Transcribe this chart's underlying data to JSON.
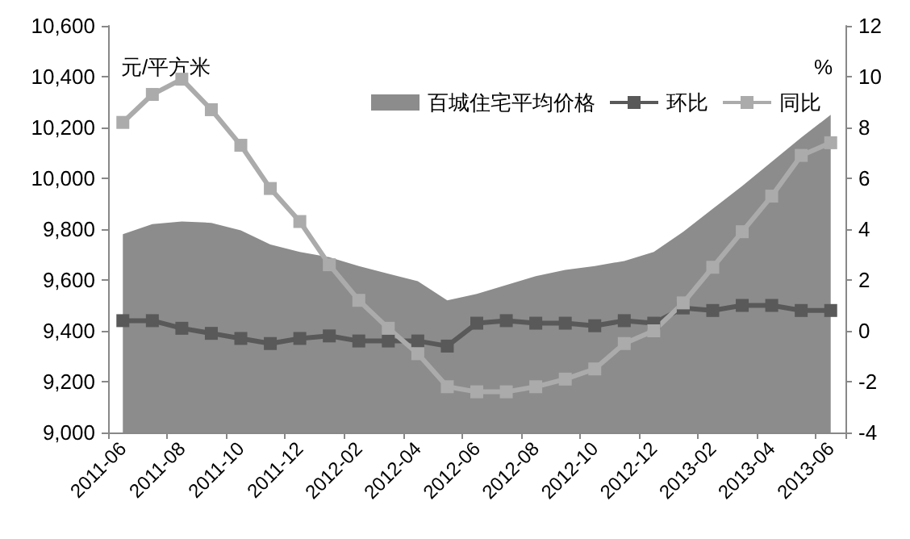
{
  "chart_data": {
    "type": "area",
    "ylabel": "元/平方米",
    "y2label": "%",
    "categories": [
      "2011-06",
      null,
      "2011-08",
      null,
      "2011-10",
      null,
      "2011-12",
      null,
      "2012-02",
      null,
      "2012-04",
      null,
      "2012-06",
      null,
      "2012-08",
      null,
      "2012-10",
      null,
      "2012-12",
      null,
      "2013-02",
      null,
      "2013-04",
      null,
      "2013-06"
    ],
    "series": [
      {
        "name": "百城住宅平均价格",
        "color": "#8c8c8c",
        "values": [
          9780,
          9820,
          9830,
          9825,
          9795,
          9740,
          9710,
          9690,
          9655,
          9625,
          9595,
          9520,
          9545,
          9580,
          9615,
          9640,
          9655,
          9675,
          9710,
          9790,
          9880,
          9970,
          10065,
          10160,
          10250
        ]
      },
      {
        "name": "环比",
        "type": "line",
        "axis": "y2",
        "color": "#595959",
        "marker": "square",
        "values": [
          0.4,
          0.4,
          0.1,
          -0.1,
          -0.3,
          -0.5,
          -0.3,
          -0.2,
          -0.4,
          -0.4,
          -0.4,
          -0.6,
          0.3,
          0.4,
          0.3,
          0.3,
          0.2,
          0.4,
          0.3,
          0.9,
          0.8,
          1.0,
          1.0,
          0.8,
          0.8
        ]
      },
      {
        "name": "同比",
        "type": "line",
        "axis": "y2",
        "color": "#ababab",
        "marker": "square",
        "values": [
          8.2,
          9.3,
          9.9,
          8.7,
          7.3,
          5.6,
          4.3,
          2.6,
          1.2,
          0.1,
          -0.9,
          -2.2,
          -2.4,
          -2.4,
          -2.2,
          -1.9,
          -1.5,
          -0.5,
          0.0,
          1.1,
          2.5,
          3.9,
          5.3,
          6.9,
          7.4
        ]
      }
    ],
    "ylim": [
      9000,
      10600
    ],
    "yticks": [
      {
        "value": 9000,
        "label": "9,000"
      },
      {
        "value": 9200,
        "label": "9,200"
      },
      {
        "value": 9400,
        "label": "9,400"
      },
      {
        "value": 9600,
        "label": "9,600"
      },
      {
        "value": 9800,
        "label": "9,800"
      },
      {
        "value": 10000,
        "label": "10,000"
      },
      {
        "value": 10200,
        "label": "10,200"
      },
      {
        "value": 10400,
        "label": "10,400"
      },
      {
        "value": 10600,
        "label": "10,600"
      }
    ],
    "y2lim": [
      -4,
      12
    ],
    "y2ticks": [
      -4,
      -2,
      0,
      2,
      4,
      6,
      8,
      10,
      12
    ],
    "legend": "top right"
  }
}
